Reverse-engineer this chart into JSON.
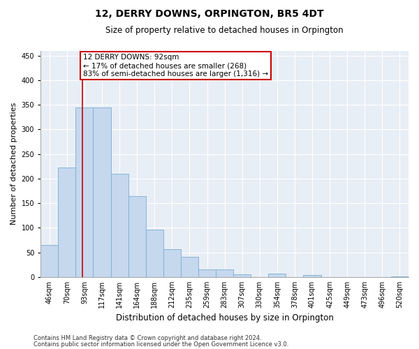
{
  "title": "12, DERRY DOWNS, ORPINGTON, BR5 4DT",
  "subtitle": "Size of property relative to detached houses in Orpington",
  "xlabel": "Distribution of detached houses by size in Orpington",
  "ylabel": "Number of detached properties",
  "bar_color": "#c5d8ee",
  "bar_edge_color": "#7aadd4",
  "background_color": "#e8eef5",
  "grid_color": "#ffffff",
  "fig_background": "#ffffff",
  "categories": [
    "46sqm",
    "70sqm",
    "93sqm",
    "117sqm",
    "141sqm",
    "164sqm",
    "188sqm",
    "212sqm",
    "235sqm",
    "259sqm",
    "283sqm",
    "307sqm",
    "330sqm",
    "354sqm",
    "378sqm",
    "401sqm",
    "425sqm",
    "449sqm",
    "473sqm",
    "496sqm",
    "520sqm"
  ],
  "values": [
    65,
    222,
    345,
    345,
    210,
    165,
    97,
    57,
    41,
    16,
    16,
    6,
    0,
    7,
    0,
    4,
    0,
    0,
    0,
    0,
    2
  ],
  "ylim": [
    0,
    460
  ],
  "yticks": [
    0,
    50,
    100,
    150,
    200,
    250,
    300,
    350,
    400,
    450
  ],
  "property_line_x": 1.87,
  "annotation_line1": "12 DERRY DOWNS: 92sqm",
  "annotation_line2": "← 17% of detached houses are smaller (268)",
  "annotation_line3": "83% of semi-detached houses are larger (1,316) →",
  "annotation_box_facecolor": "#ffffff",
  "annotation_box_edgecolor": "#cc0000",
  "vline_color": "#cc0000",
  "footer_line1": "Contains HM Land Registry data © Crown copyright and database right 2024.",
  "footer_line2": "Contains public sector information licensed under the Open Government Licence v3.0.",
  "title_fontsize": 10,
  "subtitle_fontsize": 8.5,
  "ylabel_fontsize": 8,
  "xlabel_fontsize": 8.5,
  "tick_fontsize": 7,
  "annotation_fontsize": 7.5,
  "footer_fontsize": 6
}
